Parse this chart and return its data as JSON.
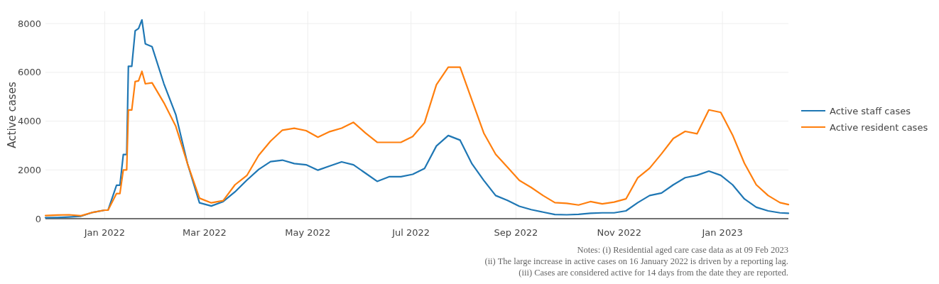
{
  "chart_data": {
    "type": "line",
    "ylabel": "Active cases",
    "x": [
      "2021-11-27",
      "2021-12-04",
      "2021-12-11",
      "2021-12-18",
      "2021-12-25",
      "2022-01-01",
      "2022-01-03",
      "2022-01-08",
      "2022-01-10",
      "2022-01-12",
      "2022-01-14",
      "2022-01-15",
      "2022-01-17",
      "2022-01-19",
      "2022-01-21",
      "2022-01-23",
      "2022-01-25",
      "2022-01-29",
      "2022-02-05",
      "2022-02-12",
      "2022-02-19",
      "2022-02-26",
      "2022-03-05",
      "2022-03-12",
      "2022-03-19",
      "2022-03-26",
      "2022-04-02",
      "2022-04-09",
      "2022-04-16",
      "2022-04-23",
      "2022-04-30",
      "2022-05-07",
      "2022-05-14",
      "2022-05-21",
      "2022-05-28",
      "2022-06-04",
      "2022-06-11",
      "2022-06-18",
      "2022-06-25",
      "2022-07-02",
      "2022-07-09",
      "2022-07-16",
      "2022-07-23",
      "2022-07-30",
      "2022-08-06",
      "2022-08-13",
      "2022-08-20",
      "2022-08-27",
      "2022-09-03",
      "2022-09-10",
      "2022-09-17",
      "2022-09-24",
      "2022-10-01",
      "2022-10-08",
      "2022-10-15",
      "2022-10-22",
      "2022-10-29",
      "2022-11-05",
      "2022-11-12",
      "2022-11-19",
      "2022-11-26",
      "2022-12-03",
      "2022-12-10",
      "2022-12-17",
      "2022-12-24",
      "2022-12-31",
      "2023-01-07",
      "2023-01-14",
      "2023-01-21",
      "2023-01-28",
      "2023-02-04",
      "2023-02-09"
    ],
    "series": [
      {
        "name": "Active staff cases",
        "color": "#1f77b4",
        "values": [
          40,
          50,
          70,
          100,
          260,
          350,
          350,
          1370,
          1370,
          2630,
          2630,
          6250,
          6250,
          7700,
          7800,
          8150,
          7170,
          7050,
          5530,
          4270,
          2240,
          650,
          520,
          700,
          1100,
          1580,
          2020,
          2340,
          2400,
          2260,
          2210,
          1990,
          2160,
          2330,
          2210,
          1870,
          1530,
          1720,
          1720,
          1820,
          2060,
          2980,
          3410,
          3220,
          2250,
          1570,
          950,
          750,
          510,
          370,
          270,
          170,
          160,
          180,
          220,
          240,
          240,
          320,
          660,
          950,
          1050,
          1390,
          1680,
          1780,
          1950,
          1780,
          1390,
          810,
          470,
          320,
          240,
          220
        ]
      },
      {
        "name": "Active resident cases",
        "color": "#ff7f0e",
        "values": [
          130,
          150,
          160,
          120,
          260,
          350,
          350,
          1030,
          1030,
          2000,
          2000,
          4460,
          4460,
          5620,
          5650,
          6040,
          5530,
          5570,
          4750,
          3790,
          2240,
          840,
          650,
          740,
          1390,
          1770,
          2600,
          3180,
          3630,
          3710,
          3610,
          3340,
          3570,
          3710,
          3950,
          3520,
          3130,
          3130,
          3130,
          3370,
          3940,
          5490,
          6210,
          6210,
          4860,
          3510,
          2640,
          2110,
          1570,
          1280,
          950,
          660,
          630,
          560,
          700,
          610,
          680,
          810,
          1680,
          2070,
          2660,
          3290,
          3580,
          3480,
          4460,
          4360,
          3430,
          2270,
          1390,
          950,
          660,
          580
        ]
      }
    ],
    "xlim": [
      "2021-11-27",
      "2023-02-09"
    ],
    "xticks": [
      {
        "value": "2022-01-01",
        "label": "Jan 2022"
      },
      {
        "value": "2022-03-01",
        "label": "Mar 2022"
      },
      {
        "value": "2022-05-01",
        "label": "May 2022"
      },
      {
        "value": "2022-07-01",
        "label": "Jul 2022"
      },
      {
        "value": "2022-09-01",
        "label": "Sep 2022"
      },
      {
        "value": "2022-11-01",
        "label": "Nov 2022"
      },
      {
        "value": "2023-01-01",
        "label": "Jan 2023"
      }
    ],
    "ylim": [
      0,
      8500
    ],
    "yticks": [
      0,
      2000,
      4000,
      6000,
      8000
    ],
    "grid": true,
    "legend": "right",
    "line_style": "solid",
    "annotations": [
      "Notes: (i) Residential aged care case data as at 09 Feb 2023",
      "(ii) The large increase in active cases on 16 January 2022 is driven by a reporting lag.",
      "(iii) Cases are considered active for 14 days from the date they are reported."
    ]
  }
}
